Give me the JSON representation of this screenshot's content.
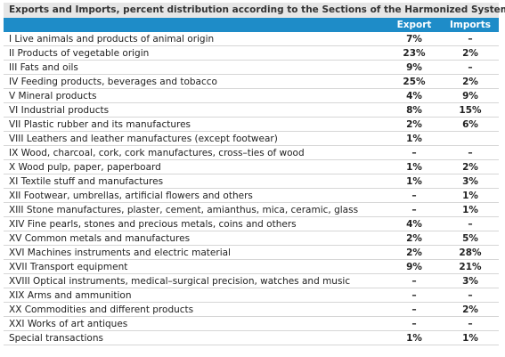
{
  "table": {
    "title": "Exports and Imports, percent distribution according to the Sections of the Harmonized System",
    "columns": [
      "Export",
      "Imports"
    ],
    "rows": [
      [
        "I Live animals and products of animal origin",
        "7%",
        "–"
      ],
      [
        "II Products of vegetable origin",
        "23%",
        "2%"
      ],
      [
        "III Fats and oils",
        "9%",
        "–"
      ],
      [
        "IV Feeding products, beverages and tobacco",
        "25%",
        "2%"
      ],
      [
        "V Mineral products",
        "4%",
        "9%"
      ],
      [
        "VI Industrial products",
        "8%",
        "15%"
      ],
      [
        "VII Plastic rubber and its manufactures",
        "2%",
        "6%"
      ],
      [
        "VIII Leathers and leather manufactures (except footwear)",
        "1%",
        null
      ],
      [
        "IX Wood, charcoal, cork, cork manufactures, cross–ties of wood",
        "–",
        "–"
      ],
      [
        "X Wood pulp, paper, paperboard",
        "1%",
        "2%"
      ],
      [
        "XI Textile stuff and manufactures",
        "1%",
        "3%"
      ],
      [
        "XII Footwear, umbrellas, artificial flowers and others",
        "–",
        "1%"
      ],
      [
        "XIII Stone manufactures, plaster, cement, amianthus, mica, ceramic, glass",
        "–",
        "1%"
      ],
      [
        "XIV Fine pearls, stones and precious metals, coins and others",
        "4%",
        "–"
      ],
      [
        "XV Common metals and manufactures",
        "2%",
        "5%"
      ],
      [
        "XVI Machines instruments and electric material",
        "2%",
        "28%"
      ],
      [
        "XVII Transport equipment",
        "9%",
        "21%"
      ],
      [
        "XVIII Optical instruments, medical–surgical precision, watches and music",
        "–",
        "3%"
      ],
      [
        "XIX Arms and ammunition",
        "–",
        "–"
      ],
      [
        "XX Commodities and different products",
        "–",
        "2%"
      ],
      [
        "XXI Works of art antiques",
        "–",
        "–"
      ],
      [
        "Special transactions",
        "1%",
        "1%"
      ]
    ]
  }
}
